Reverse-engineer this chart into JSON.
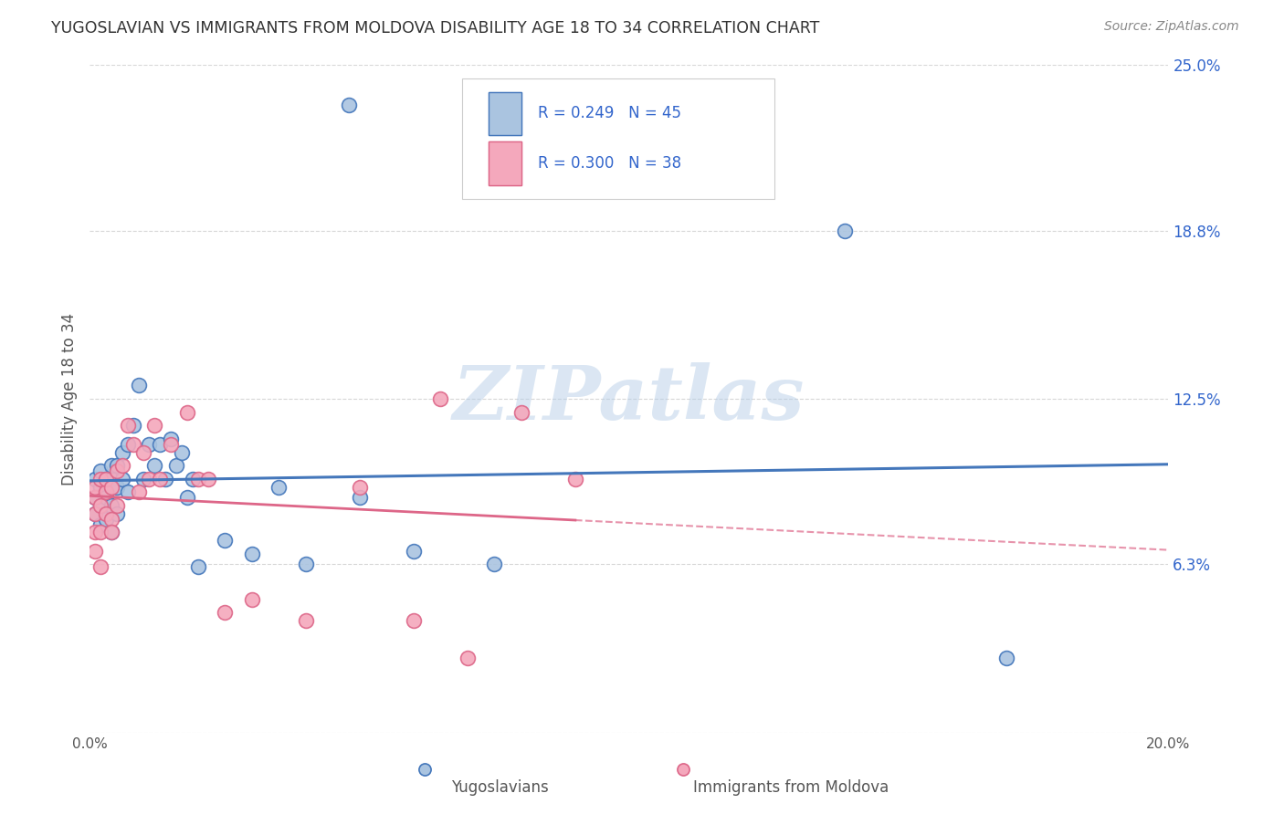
{
  "title": "YUGOSLAVIAN VS IMMIGRANTS FROM MOLDOVA DISABILITY AGE 18 TO 34 CORRELATION CHART",
  "source": "Source: ZipAtlas.com",
  "ylabel": "Disability Age 18 to 34",
  "xlim": [
    0.0,
    0.2
  ],
  "ylim": [
    0.0,
    0.25
  ],
  "xticks": [
    0.0,
    0.05,
    0.1,
    0.15,
    0.2
  ],
  "xtick_labels": [
    "0.0%",
    "",
    "",
    "",
    "20.0%"
  ],
  "yticks": [
    0.0,
    0.063,
    0.125,
    0.188,
    0.25
  ],
  "ytick_labels": [
    "",
    "6.3%",
    "12.5%",
    "18.8%",
    "25.0%"
  ],
  "grid_color": "#cccccc",
  "background_color": "#ffffff",
  "watermark": "ZIPatlas",
  "blue_color": "#4477bb",
  "pink_color": "#dd6688",
  "blue_fill": "#aac4e0",
  "pink_fill": "#f4a8bc",
  "title_color": "#333333",
  "axis_label_color": "#555555",
  "tick_label_color_right": "#3366cc",
  "yugoslav_x": [
    0.001,
    0.001,
    0.001,
    0.002,
    0.002,
    0.002,
    0.002,
    0.003,
    0.003,
    0.003,
    0.003,
    0.004,
    0.004,
    0.004,
    0.004,
    0.005,
    0.005,
    0.005,
    0.006,
    0.006,
    0.007,
    0.007,
    0.008,
    0.009,
    0.01,
    0.011,
    0.012,
    0.013,
    0.014,
    0.015,
    0.016,
    0.017,
    0.018,
    0.019,
    0.02,
    0.025,
    0.03,
    0.035,
    0.04,
    0.048,
    0.05,
    0.06,
    0.075,
    0.14,
    0.17
  ],
  "yugoslav_y": [
    0.088,
    0.095,
    0.082,
    0.085,
    0.092,
    0.098,
    0.078,
    0.09,
    0.095,
    0.088,
    0.08,
    0.095,
    0.1,
    0.085,
    0.075,
    0.092,
    0.1,
    0.082,
    0.105,
    0.095,
    0.108,
    0.09,
    0.115,
    0.13,
    0.095,
    0.108,
    0.1,
    0.108,
    0.095,
    0.11,
    0.1,
    0.105,
    0.088,
    0.095,
    0.062,
    0.072,
    0.067,
    0.092,
    0.063,
    0.235,
    0.088,
    0.068,
    0.063,
    0.188,
    0.028
  ],
  "moldova_x": [
    0.001,
    0.001,
    0.001,
    0.001,
    0.001,
    0.002,
    0.002,
    0.002,
    0.002,
    0.003,
    0.003,
    0.003,
    0.004,
    0.004,
    0.004,
    0.005,
    0.005,
    0.006,
    0.007,
    0.008,
    0.009,
    0.01,
    0.011,
    0.012,
    0.013,
    0.015,
    0.018,
    0.02,
    0.022,
    0.025,
    0.03,
    0.04,
    0.05,
    0.06,
    0.065,
    0.07,
    0.08,
    0.09
  ],
  "moldova_y": [
    0.082,
    0.088,
    0.075,
    0.092,
    0.068,
    0.085,
    0.095,
    0.075,
    0.062,
    0.09,
    0.082,
    0.095,
    0.08,
    0.092,
    0.075,
    0.098,
    0.085,
    0.1,
    0.115,
    0.108,
    0.09,
    0.105,
    0.095,
    0.115,
    0.095,
    0.108,
    0.12,
    0.095,
    0.095,
    0.045,
    0.05,
    0.042,
    0.092,
    0.042,
    0.125,
    0.028,
    0.12,
    0.095
  ]
}
